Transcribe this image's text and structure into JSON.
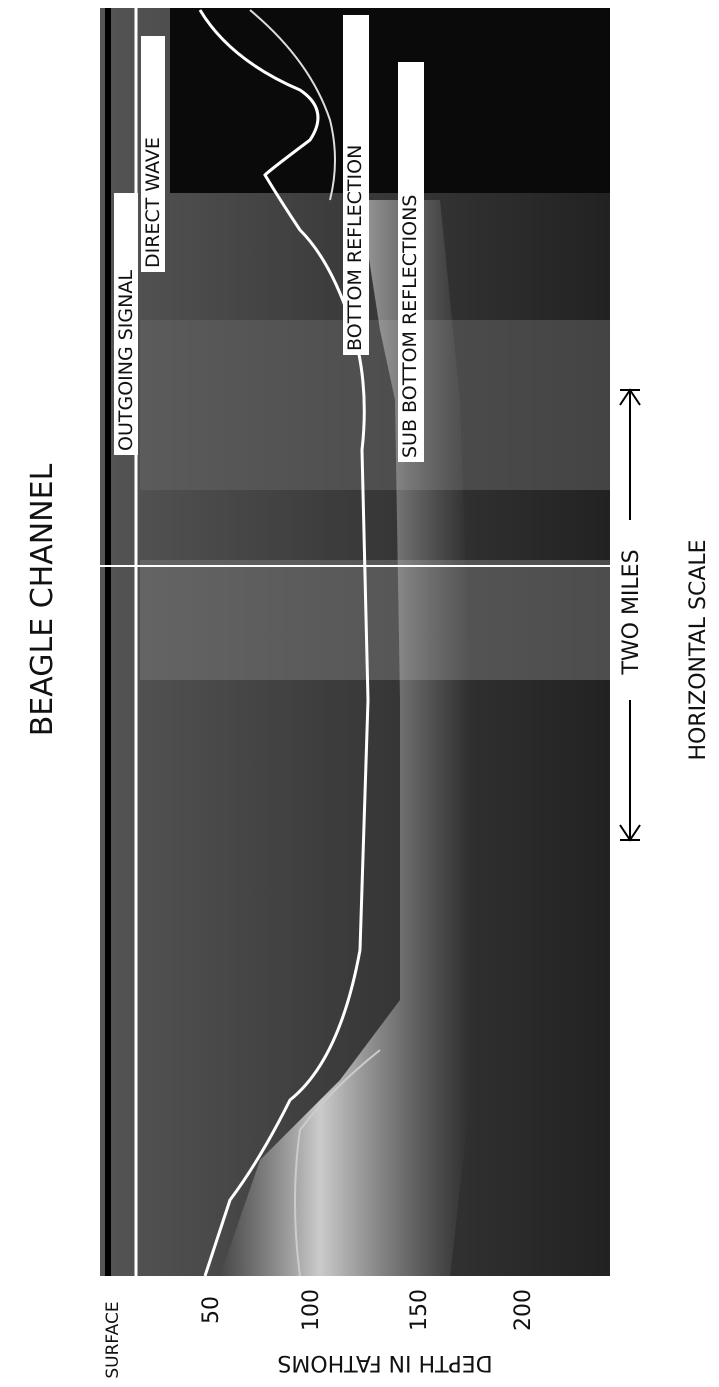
{
  "title": "BEAGLE CHANNEL",
  "labels": {
    "outgoing_signal": "OUTGOING SIGNAL",
    "direct_wave": "DIRECT WAVE",
    "bottom_reflection": "BOTTOM REFLECTION",
    "sub_bottom_reflections": "SUB BOTTOM REFLECTIONS"
  },
  "depth_axis": {
    "title": "DEPTH IN FATHOMS",
    "ticks": [
      "SURFACE",
      "50",
      "100",
      "150",
      "200"
    ]
  },
  "scale": {
    "distance": "TWO MILES",
    "title": "HORIZONTAL SCALE"
  }
}
